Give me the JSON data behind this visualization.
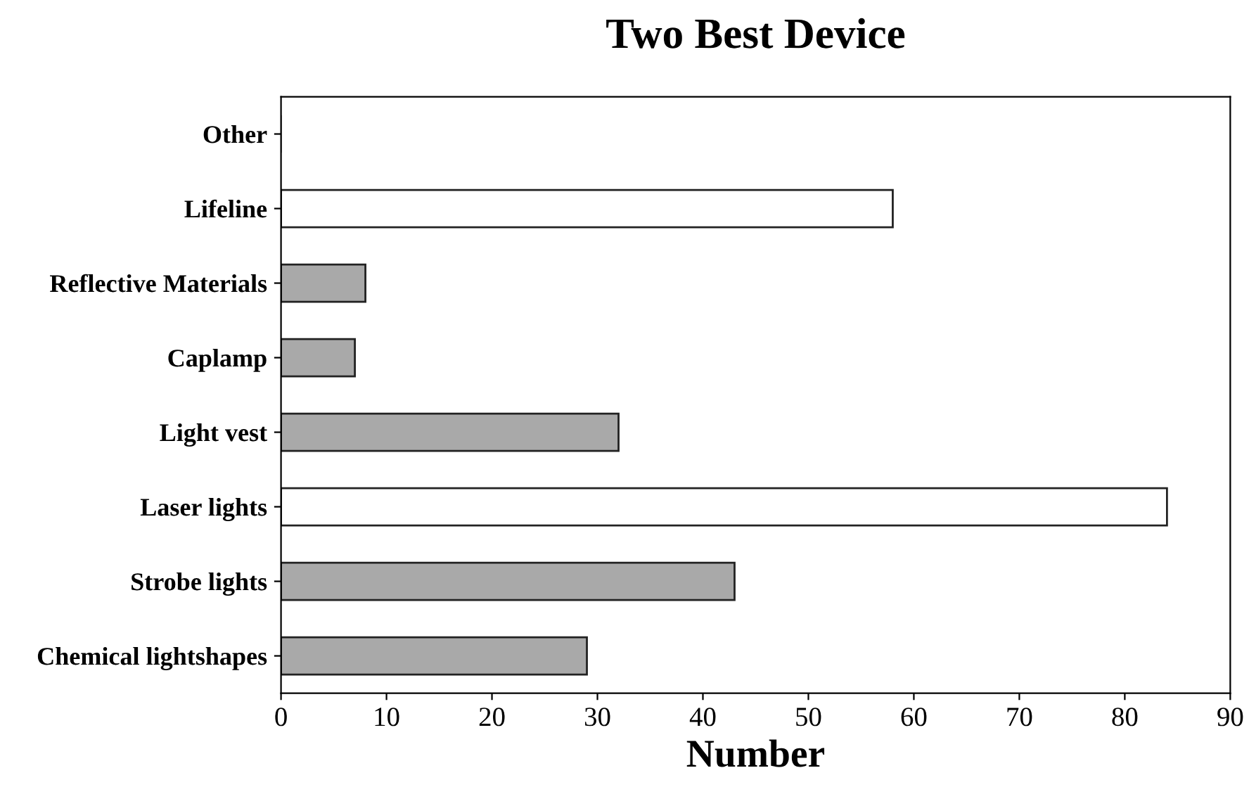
{
  "chart_data": {
    "type": "bar",
    "orientation": "horizontal",
    "title": "Two Best Device",
    "xlabel": "Number",
    "categories": [
      "Other",
      "Lifeline",
      "Reflective Materials",
      "Caplamp",
      "Light vest",
      "Laser lights",
      "Strobe lights",
      "Chemical lightshapes"
    ],
    "values": [
      0,
      58,
      8,
      7,
      32,
      84,
      43,
      29
    ],
    "colors": [
      "#a9a9a9",
      "#ffffff",
      "#a9a9a9",
      "#a9a9a9",
      "#a9a9a9",
      "#ffffff",
      "#a9a9a9",
      "#a9a9a9"
    ],
    "xlim": [
      0,
      90
    ],
    "xticks": [
      0,
      10,
      20,
      30,
      40,
      50,
      60,
      70,
      80,
      90
    ],
    "grid": false,
    "legend": false
  }
}
